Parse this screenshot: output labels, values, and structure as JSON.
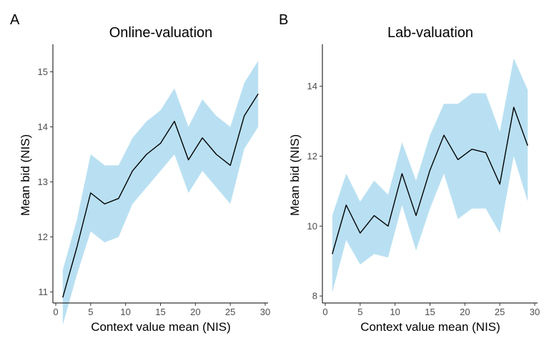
{
  "chart_data": [
    {
      "type": "line",
      "panel": "A",
      "title": "Online-valuation",
      "xlabel": "Context value mean (NIS)",
      "ylabel": "Mean bid (NIS)",
      "xlim": [
        0,
        30
      ],
      "ylim": [
        10.8,
        15.5
      ],
      "xticks": [
        0,
        5,
        10,
        15,
        20,
        25,
        30
      ],
      "yticks": [
        11,
        12,
        13,
        14,
        15
      ],
      "grid": false,
      "x": [
        1,
        3,
        5,
        7,
        9,
        11,
        13,
        15,
        17,
        19,
        21,
        23,
        25,
        27,
        29
      ],
      "series": [
        {
          "values": [
            10.9,
            11.8,
            12.8,
            12.6,
            12.7,
            13.2,
            13.5,
            13.7,
            14.1,
            13.4,
            13.8,
            13.5,
            13.3,
            14.2,
            14.6
          ],
          "lower": [
            10.4,
            11.3,
            12.1,
            11.9,
            12.0,
            12.6,
            12.9,
            13.2,
            13.5,
            12.8,
            13.2,
            12.9,
            12.6,
            13.6,
            14.0
          ],
          "upper": [
            11.4,
            12.3,
            13.5,
            13.3,
            13.3,
            13.8,
            14.1,
            14.3,
            14.7,
            14.0,
            14.5,
            14.2,
            14.0,
            14.8,
            15.2
          ]
        }
      ]
    },
    {
      "type": "line",
      "panel": "B",
      "title": "Lab-valuation",
      "xlabel": "Context value mean (NIS)",
      "ylabel": "Mean bid (NIS)",
      "xlim": [
        0,
        30
      ],
      "ylim": [
        7.8,
        15.2
      ],
      "xticks": [
        0,
        5,
        10,
        15,
        20,
        25,
        30
      ],
      "yticks": [
        8,
        10,
        12,
        14
      ],
      "grid": false,
      "x": [
        1,
        3,
        5,
        7,
        9,
        11,
        13,
        15,
        17,
        19,
        21,
        23,
        25,
        27,
        29
      ],
      "series": [
        {
          "values": [
            9.2,
            10.6,
            9.8,
            10.3,
            10.0,
            11.5,
            10.3,
            11.6,
            12.6,
            11.9,
            12.2,
            12.1,
            11.2,
            13.4,
            12.3
          ],
          "lower": [
            8.1,
            9.6,
            8.9,
            9.2,
            9.1,
            10.6,
            9.3,
            10.5,
            11.5,
            10.2,
            10.5,
            10.5,
            9.8,
            12.0,
            10.7
          ],
          "upper": [
            10.3,
            11.5,
            10.7,
            11.3,
            10.9,
            12.4,
            11.3,
            12.6,
            13.5,
            13.5,
            13.8,
            13.8,
            12.7,
            14.8,
            13.9
          ]
        }
      ]
    }
  ]
}
